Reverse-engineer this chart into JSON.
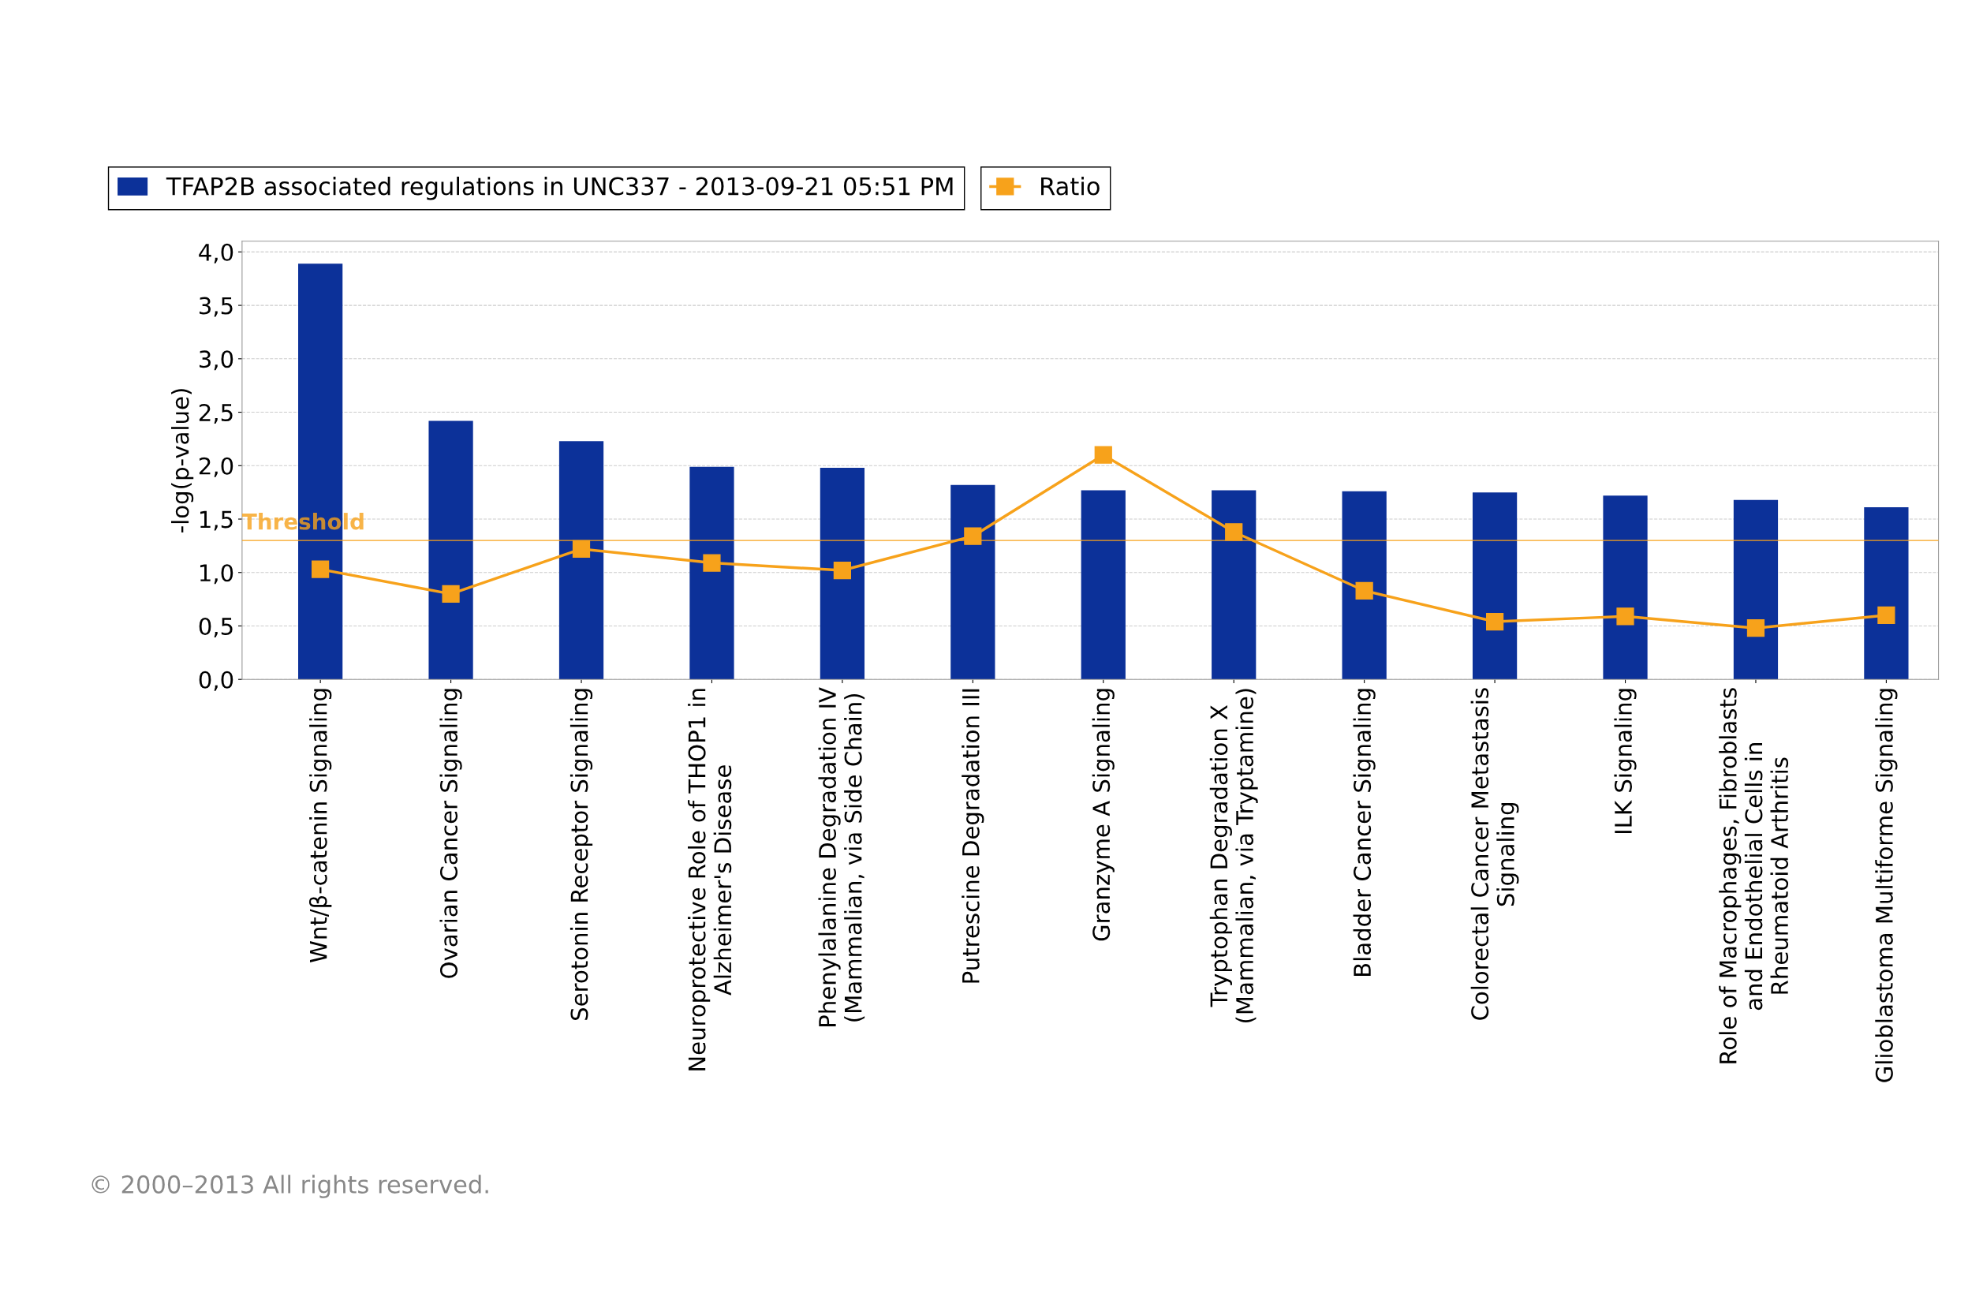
{
  "chart_data": {
    "type": "bar",
    "ylabel": "-log(p-value)",
    "categories": [
      "Wnt/β-catenin Signaling",
      "Ovarian Cancer Signaling",
      "Serotonin Receptor Signaling",
      "Neuroprotective Role of THOP1 in\nAlzheimer's Disease",
      "Phenylalanine Degradation IV\n(Mammalian, via Side Chain)",
      "Putrescine Degradation III",
      "Granzyme A Signaling",
      "Tryptophan Degradation X\n(Mammalian, via Tryptamine)",
      "Bladder Cancer Signaling",
      "Colorectal Cancer Metastasis\nSignaling",
      "ILK Signaling",
      "Role of Macrophages, Fibroblasts\nand Endothelial Cells in\nRheumatoid Arthritis",
      "Glioblastoma Multiforme Signaling"
    ],
    "series": [
      {
        "name": "TFAP2B associated regulations in UNC337 - 2013-09-21 05:51 PM",
        "color": "#0c3199",
        "values": [
          3.89,
          2.42,
          2.23,
          1.99,
          1.98,
          1.82,
          1.77,
          1.77,
          1.76,
          1.75,
          1.72,
          1.68,
          1.61
        ]
      },
      {
        "name": "Ratio",
        "type": "line",
        "color": "#f7a21b",
        "marker": "square",
        "values": [
          1.03,
          0.8,
          1.22,
          1.09,
          1.02,
          1.34,
          2.1,
          1.38,
          0.83,
          0.54,
          0.59,
          0.48,
          0.6
        ]
      }
    ],
    "ylim": [
      0,
      4.1
    ],
    "yticks": [
      {
        "value": 0,
        "label": "0,0"
      },
      {
        "value": 0.5,
        "label": "0,5"
      },
      {
        "value": 1,
        "label": "1,0"
      },
      {
        "value": 1.5,
        "label": "1,5"
      },
      {
        "value": 2,
        "label": "2,0"
      },
      {
        "value": 2.5,
        "label": "2,5"
      },
      {
        "value": 3,
        "label": "3,0"
      },
      {
        "value": 3.5,
        "label": "3,5"
      },
      {
        "value": 4,
        "label": "4,0"
      }
    ],
    "ref_lines": [
      {
        "axis": "y",
        "value": 1.3,
        "label": "Threshold",
        "color": "#f7a21b"
      }
    ],
    "grid": "y",
    "legend": "top left",
    "annotations": [
      "© 2000–2013 All rights reserved."
    ]
  }
}
